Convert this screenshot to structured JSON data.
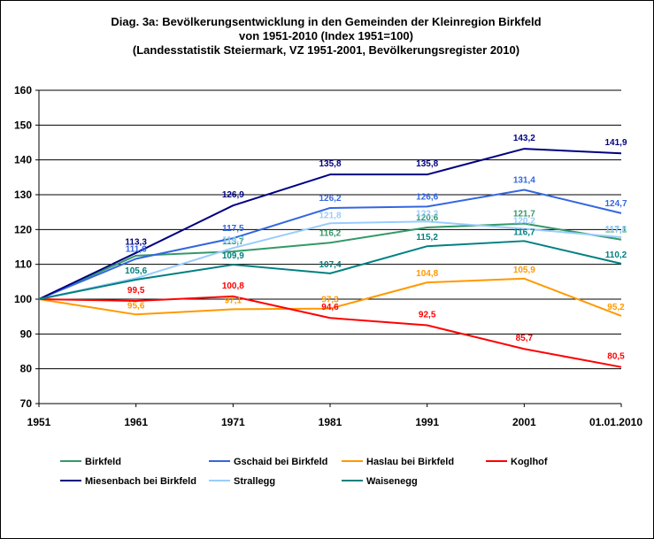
{
  "chart_data": {
    "type": "line",
    "title": [
      "Diag. 3a: Bevölkerungsentwicklung  in den Gemeinden  der Kleinregion Birkfeld",
      "von 1951-2010  (Index 1951=100)",
      "(Landesstatistik  Steiermark,  VZ 1951-2001,  Bevölkerungsregister  2010)"
    ],
    "categories": [
      "1951",
      "1961",
      "1971",
      "1981",
      "1991",
      "2001",
      "01.01.2010"
    ],
    "ylim": [
      70,
      160
    ],
    "yticks": [
      "70",
      "80",
      "90",
      "100",
      "110",
      "120",
      "130",
      "140",
      "150",
      "160"
    ],
    "grid": true,
    "legend_position": "bottom",
    "series": [
      {
        "name": "Birkfeld",
        "color": "#339966",
        "values": [
          100,
          112.5,
          113.7,
          116.2,
          120.6,
          121.7,
          117.1
        ],
        "labels": [
          "",
          "",
          "113,7",
          "116,2",
          "120,6",
          "121,7",
          "117,1"
        ]
      },
      {
        "name": "Gschaid bei Birkfeld",
        "color": "#3366e0",
        "values": [
          100,
          111.6,
          117.5,
          126.2,
          126.6,
          131.4,
          124.7
        ],
        "labels": [
          "",
          "111,6",
          "117,5",
          "126,2",
          "126,6",
          "131,4",
          "124,7"
        ]
      },
      {
        "name": "Haslau bei Birkfeld",
        "color": "#ff9900",
        "values": [
          100,
          95.6,
          97.1,
          97.3,
          104.8,
          105.9,
          95.2
        ],
        "labels": [
          "",
          "95,6",
          "97,1",
          "97,3",
          "104,8",
          "105,9",
          "95,2"
        ]
      },
      {
        "name": "Koglhof",
        "color": "#ff0000",
        "values": [
          100,
          99.5,
          100.8,
          94.6,
          92.5,
          85.7,
          80.5
        ],
        "labels": [
          "",
          "99,5",
          "100,8",
          "94,6",
          "92,5",
          "85,7",
          "80,5"
        ]
      },
      {
        "name": "Miesenbach bei Birkfeld",
        "color": "#000080",
        "values": [
          100,
          113.3,
          126.9,
          135.8,
          135.8,
          143.2,
          141.9
        ],
        "labels": [
          "",
          "113,3",
          "126,9",
          "135,8",
          "135,8",
          "143,2",
          "141,9"
        ]
      },
      {
        "name": "Strallegg",
        "color": "#99ccff",
        "values": [
          100,
          106.0,
          114.7,
          121.8,
          122.3,
          120.2,
          117.8
        ],
        "labels": [
          "",
          "",
          "114,7",
          "121,8",
          "122,3",
          "120,2",
          "117,8"
        ]
      },
      {
        "name": "Waisenegg",
        "color": "#008080",
        "values": [
          100,
          105.6,
          109.9,
          107.4,
          115.2,
          116.7,
          110.2
        ],
        "labels": [
          "",
          "105,6",
          "109,9",
          "107,4",
          "115,2",
          "116,7",
          "110,2"
        ]
      }
    ]
  }
}
